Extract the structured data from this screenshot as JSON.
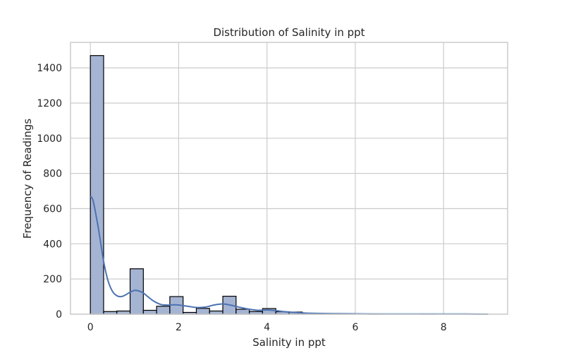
{
  "chart_data": {
    "type": "bar",
    "subtype": "histogram-with-kde",
    "title": "Distribution of Salinity in ppt",
    "xlabel": "Salinity in ppt",
    "ylabel": "Frequency of Readings",
    "xlim": [
      -0.45,
      9.45
    ],
    "ylim": [
      0,
      1545
    ],
    "x_ticks": [
      0,
      2,
      4,
      6,
      8
    ],
    "y_ticks": [
      0,
      200,
      400,
      600,
      800,
      1000,
      1200,
      1400
    ],
    "bin_width": 0.3,
    "bins": [
      {
        "x0": 0.0,
        "x1": 0.3,
        "count": 1470
      },
      {
        "x0": 0.3,
        "x1": 0.6,
        "count": 15
      },
      {
        "x0": 0.6,
        "x1": 0.9,
        "count": 18
      },
      {
        "x0": 0.9,
        "x1": 1.2,
        "count": 258
      },
      {
        "x0": 1.2,
        "x1": 1.5,
        "count": 22
      },
      {
        "x0": 1.5,
        "x1": 1.8,
        "count": 45
      },
      {
        "x0": 1.8,
        "x1": 2.1,
        "count": 100
      },
      {
        "x0": 2.1,
        "x1": 2.4,
        "count": 10
      },
      {
        "x0": 2.4,
        "x1": 2.7,
        "count": 33
      },
      {
        "x0": 2.7,
        "x1": 3.0,
        "count": 18
      },
      {
        "x0": 3.0,
        "x1": 3.3,
        "count": 102
      },
      {
        "x0": 3.3,
        "x1": 3.6,
        "count": 28
      },
      {
        "x0": 3.6,
        "x1": 3.9,
        "count": 15
      },
      {
        "x0": 3.9,
        "x1": 4.2,
        "count": 32
      },
      {
        "x0": 4.2,
        "x1": 4.5,
        "count": 14
      },
      {
        "x0": 4.5,
        "x1": 4.8,
        "count": 12
      },
      {
        "x0": 4.8,
        "x1": 5.1,
        "count": 3
      },
      {
        "x0": 5.1,
        "x1": 5.4,
        "count": 2
      },
      {
        "x0": 5.4,
        "x1": 5.7,
        "count": 1
      },
      {
        "x0": 5.7,
        "x1": 6.0,
        "count": 1
      },
      {
        "x0": 6.0,
        "x1": 6.3,
        "count": 0
      },
      {
        "x0": 6.3,
        "x1": 6.6,
        "count": 1
      },
      {
        "x0": 6.6,
        "x1": 6.9,
        "count": 0
      },
      {
        "x0": 6.9,
        "x1": 7.2,
        "count": 0
      },
      {
        "x0": 7.2,
        "x1": 7.5,
        "count": 0
      },
      {
        "x0": 7.5,
        "x1": 7.8,
        "count": 1
      },
      {
        "x0": 7.8,
        "x1": 8.1,
        "count": 0
      },
      {
        "x0": 8.1,
        "x1": 8.4,
        "count": 0
      },
      {
        "x0": 8.4,
        "x1": 8.7,
        "count": 0
      },
      {
        "x0": 8.7,
        "x1": 9.0,
        "count": 1
      }
    ],
    "kde": {
      "x": [
        0,
        0.05,
        0.1,
        0.2,
        0.3,
        0.4,
        0.5,
        0.6,
        0.7,
        0.8,
        0.9,
        1.0,
        1.1,
        1.2,
        1.3,
        1.4,
        1.5,
        1.6,
        1.7,
        1.8,
        1.9,
        2.0,
        2.2,
        2.4,
        2.6,
        2.8,
        3.0,
        3.2,
        3.4,
        3.6,
        3.8,
        4.0,
        4.2,
        4.4,
        4.6,
        4.8,
        5.0,
        5.5,
        6.0,
        6.5,
        7.0,
        7.5,
        8.0,
        8.5,
        9.0
      ],
      "y": [
        670,
        655,
        600,
        460,
        300,
        190,
        130,
        105,
        100,
        110,
        125,
        135,
        132,
        120,
        100,
        80,
        65,
        55,
        52,
        52,
        53,
        52,
        45,
        38,
        40,
        52,
        58,
        50,
        38,
        28,
        22,
        24,
        20,
        14,
        10,
        7,
        5,
        3,
        2,
        1,
        1,
        1,
        1,
        1,
        0
      ]
    },
    "grid": true,
    "legend": "none",
    "colors": {
      "bar_fill": "#a5b4d3",
      "bar_edge": "#000000",
      "kde_line": "#4c72b0",
      "grid": "#cccccc",
      "frame": "#cccccc",
      "text": "#262626"
    }
  }
}
